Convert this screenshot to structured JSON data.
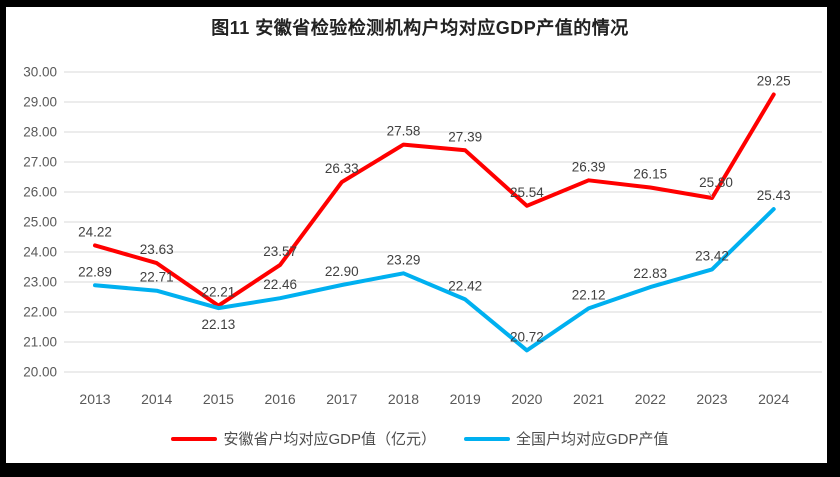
{
  "title": "图11 安徽省检验检测机构户均对应GDP产值的情况",
  "chart_data": {
    "type": "line",
    "categories": [
      "2013",
      "2014",
      "2015",
      "2016",
      "2017",
      "2018",
      "2019",
      "2020",
      "2021",
      "2022",
      "2023",
      "2024"
    ],
    "series": [
      {
        "name": "安徽省户均对应GDP值（亿元）",
        "color": "#FF0000",
        "values": [
          24.22,
          23.63,
          22.21,
          23.57,
          26.33,
          27.58,
          27.39,
          25.54,
          26.39,
          26.15,
          25.8,
          29.25
        ]
      },
      {
        "name": "全国户均对应GDP产值",
        "color": "#00B0F0",
        "values": [
          22.89,
          22.71,
          22.13,
          22.46,
          22.9,
          23.29,
          22.42,
          20.72,
          22.12,
          22.83,
          23.42,
          25.43
        ]
      }
    ],
    "ylim": [
      20,
      30
    ],
    "ytick_step": 1,
    "ytick_format": "0.00",
    "grid": true,
    "data_labels": true,
    "legend_position": "bottom",
    "xlabel": "",
    "ylabel": ""
  },
  "colors": {
    "gridline": "#d9d9d9",
    "axis_text": "#595959",
    "data_label_text": "#404040",
    "frame": "#000000",
    "leader_line": "#a6a6a6"
  }
}
